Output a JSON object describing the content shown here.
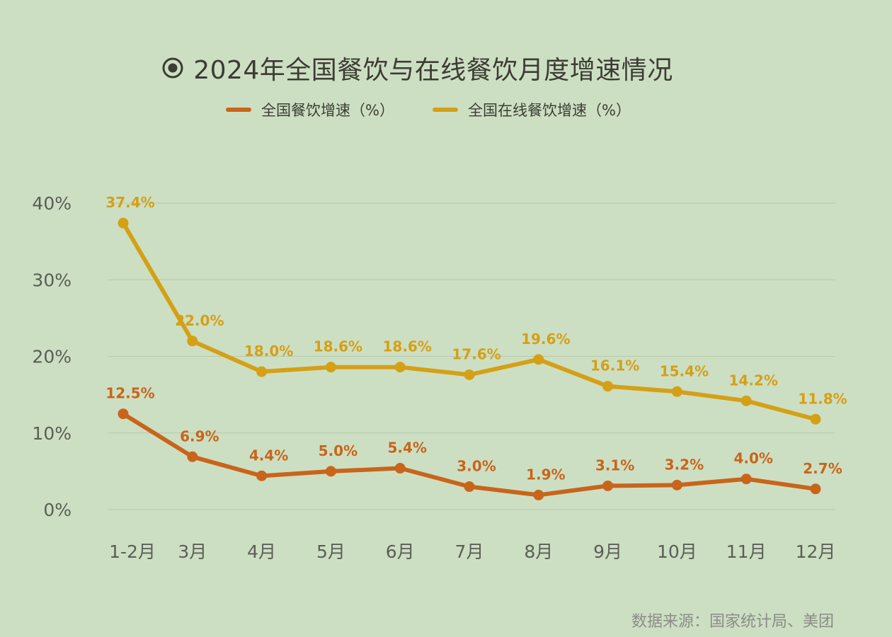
{
  "title": "2024年全国餐饮与在线餐饮月度增速情况",
  "source": "数据来源：国家统计局、美团",
  "colors": {
    "background": "#cddfc3",
    "national": "#c8651b",
    "online": "#d4a016",
    "grid": "#b7c8ac",
    "axis_text": "#5a5e55",
    "title": "#3c3c34"
  },
  "chart_data": {
    "type": "line",
    "categories": [
      "1-2月",
      "3月",
      "4月",
      "5月",
      "6月",
      "7月",
      "8月",
      "9月",
      "10月",
      "11月",
      "12月"
    ],
    "series": [
      {
        "name": "全国餐饮增速（%）",
        "values": [
          12.5,
          6.9,
          4.4,
          5.0,
          5.4,
          3.0,
          1.9,
          3.1,
          3.2,
          4.0,
          2.7
        ],
        "labels": [
          "12.5%",
          "6.9%",
          "4.4%",
          "5.0%",
          "5.4%",
          "3.0%",
          "1.9%",
          "3.1%",
          "3.2%",
          "4.0%",
          "2.7%"
        ]
      },
      {
        "name": "全国在线餐饮增速（%）",
        "values": [
          37.4,
          22.0,
          18.0,
          18.6,
          18.6,
          17.6,
          19.6,
          16.1,
          15.4,
          14.2,
          11.8
        ],
        "labels": [
          "37.4%",
          "22.0%",
          "18.0%",
          "18.6%",
          "18.6%",
          "17.6%",
          "19.6%",
          "16.1%",
          "15.4%",
          "14.2%",
          "11.8%"
        ]
      }
    ],
    "yticks": [
      "0%",
      "10%",
      "20%",
      "30%",
      "40%"
    ],
    "ylim": [
      0,
      40
    ],
    "grid": true,
    "legend": "top-center"
  }
}
